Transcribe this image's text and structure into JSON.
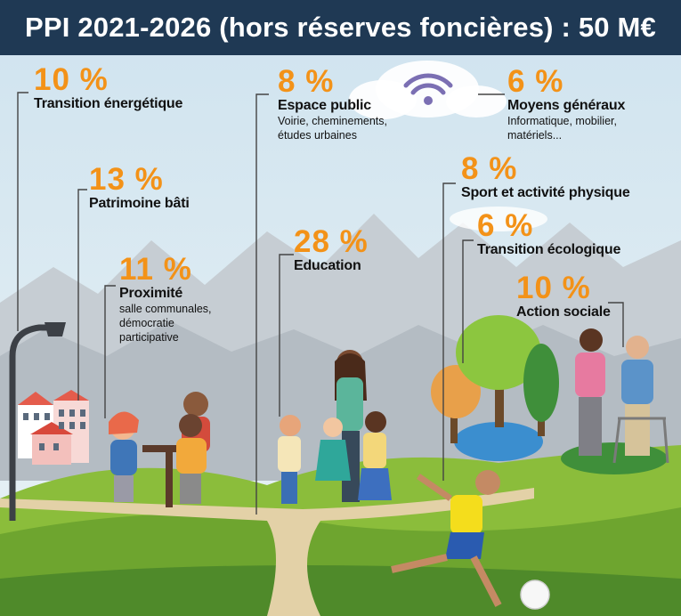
{
  "header": {
    "title": "PPI 2021-2026 (hors réserves foncières) : 50 M€"
  },
  "colors": {
    "header_bg": "#1f3954",
    "percent": "#f39218",
    "text": "#111111",
    "leader": "#444444"
  },
  "chart_data": {
    "type": "pie",
    "title": "PPI 2021-2026 (hors réserves foncières) : 50 M€",
    "unit": "%",
    "categories": [
      "Transition énergétique",
      "Patrimoine bâti",
      "Proximité",
      "Espace public",
      "Education",
      "Moyens généraux",
      "Sport et activité physique",
      "Transition écologique",
      "Action sociale"
    ],
    "values": [
      10,
      13,
      11,
      8,
      28,
      6,
      8,
      6,
      10
    ],
    "items": [
      {
        "percent": "10 %",
        "label": "Transition énergétique",
        "desc": []
      },
      {
        "percent": "13 %",
        "label": "Patrimoine bâti",
        "desc": []
      },
      {
        "percent": "11 %",
        "label": "Proximité",
        "desc": [
          "salle communales,",
          "démocratie",
          "participative"
        ]
      },
      {
        "percent": "8 %",
        "label": "Espace public",
        "desc": [
          "Voirie, cheminements,",
          "études urbaines"
        ]
      },
      {
        "percent": "28 %",
        "label": "Education",
        "desc": []
      },
      {
        "percent": "6 %",
        "label": "Moyens généraux",
        "desc": [
          "Informatique, mobilier,",
          "matériels..."
        ]
      },
      {
        "percent": "8 %",
        "label": "Sport et activité physique",
        "desc": []
      },
      {
        "percent": "6 %",
        "label": "Transition écologique",
        "desc": []
      },
      {
        "percent": "10 %",
        "label": "Action sociale",
        "desc": []
      }
    ]
  }
}
